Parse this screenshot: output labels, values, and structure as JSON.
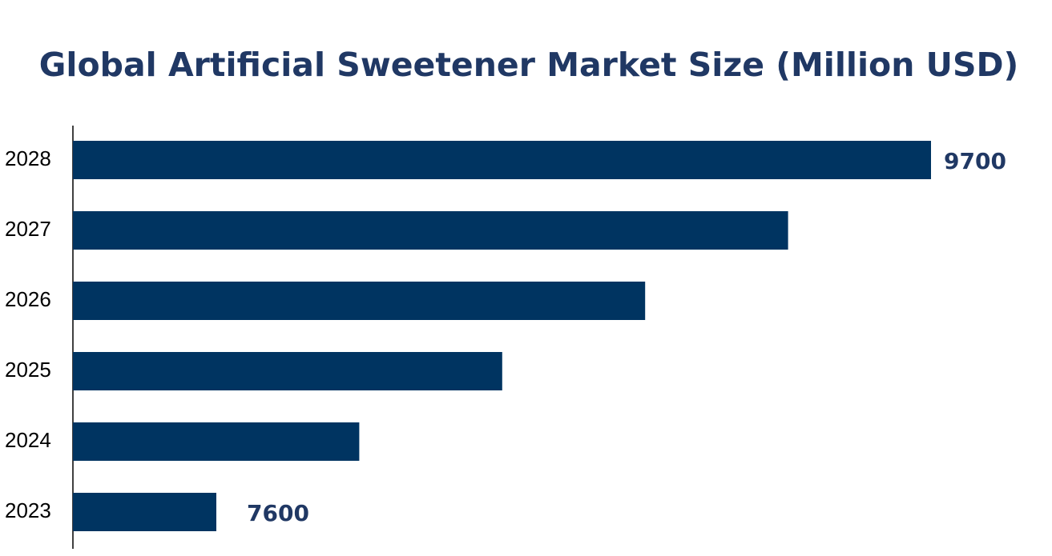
{
  "chart_data": {
    "type": "bar",
    "orientation": "horizontal",
    "title": "Global Artificial Sweetener Market Size (Million USD)",
    "categories": [
      "2023",
      "2024",
      "2025",
      "2026",
      "2027",
      "2028"
    ],
    "values": [
      7600,
      8020,
      8440,
      8860,
      9280,
      9700
    ],
    "color": "#003461"
  }
}
